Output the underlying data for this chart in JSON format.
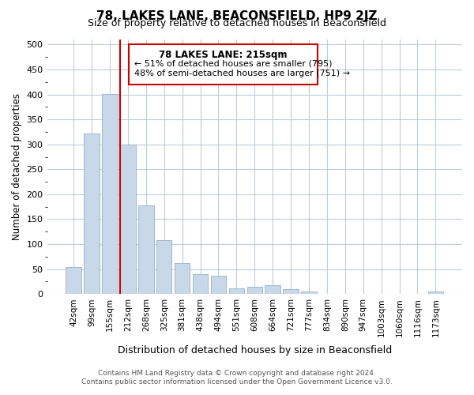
{
  "title": "78, LAKES LANE, BEACONSFIELD, HP9 2JZ",
  "subtitle": "Size of property relative to detached houses in Beaconsfield",
  "xlabel": "Distribution of detached houses by size in Beaconsfield",
  "ylabel": "Number of detached properties",
  "bar_color": "#c8d8e8",
  "bar_edge_color": "#a0b8cc",
  "bin_labels": [
    "42sqm",
    "99sqm",
    "155sqm",
    "212sqm",
    "268sqm",
    "325sqm",
    "381sqm",
    "438sqm",
    "494sqm",
    "551sqm",
    "608sqm",
    "664sqm",
    "721sqm",
    "777sqm",
    "834sqm",
    "890sqm",
    "947sqm",
    "1003sqm",
    "1060sqm",
    "1116sqm",
    "1173sqm"
  ],
  "bar_heights": [
    54,
    322,
    401,
    299,
    177,
    108,
    62,
    40,
    37,
    11,
    14,
    18,
    10,
    5,
    0,
    0,
    0,
    0,
    0,
    0,
    5
  ],
  "vline_x": 3,
  "vline_color": "#cc0000",
  "ylim": [
    0,
    510
  ],
  "yticks": [
    0,
    50,
    100,
    150,
    200,
    250,
    300,
    350,
    400,
    450,
    500
  ],
  "annotation_title": "78 LAKES LANE: 215sqm",
  "annotation_line1": "← 51% of detached houses are smaller (795)",
  "annotation_line2": "48% of semi-detached houses are larger (751) →",
  "footer_line1": "Contains HM Land Registry data © Crown copyright and database right 2024.",
  "footer_line2": "Contains public sector information licensed under the Open Government Licence v3.0.",
  "background_color": "#ffffff",
  "grid_color": "#c0ccd8"
}
